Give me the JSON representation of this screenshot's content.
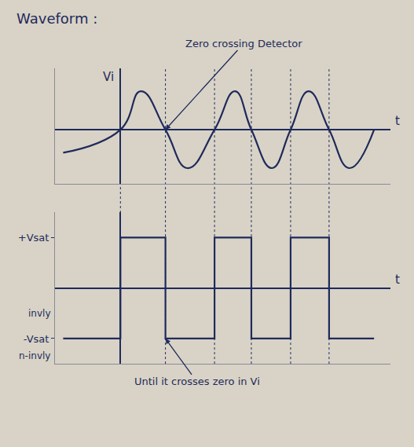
{
  "chart_data": [
    {
      "type": "line",
      "title": "Waveform :",
      "x": [
        -7,
        0,
        2.5,
        5.5,
        8.2,
        11.5,
        14,
        16,
        18.5,
        20.8,
        23,
        25.5,
        28,
        31
      ],
      "values": [
        -0.6,
        0,
        1,
        0,
        -1,
        0,
        1,
        0,
        -1,
        0,
        1,
        0,
        -1,
        0
      ],
      "xlim": [
        -8,
        33
      ],
      "ylim": [
        -1.4,
        1.6
      ],
      "tick_labels": false,
      "y_label": "Vi",
      "x_label": "t",
      "color": "#1f2a5c",
      "annotations": [
        {
          "text": "Zero crossing Detector",
          "x": 5.5,
          "y": 0
        }
      ]
    },
    {
      "type": "step",
      "x": [
        -7,
        0,
        5.5,
        11.5,
        16,
        20.8,
        25.5,
        31
      ],
      "values": [
        -1,
        1,
        -1,
        1,
        -1,
        1,
        -1,
        -1
      ],
      "xlim": [
        -8,
        33
      ],
      "ylim": [
        -1.5,
        1.5
      ],
      "yticks": [
        {
          "value": 1,
          "label": "+Vsat"
        },
        {
          "value": -1,
          "label": "-Vsat"
        }
      ],
      "tick_labels": "y",
      "x_label": "t",
      "color": "#1f2a5c",
      "annotations": [
        {
          "text": "Until it crosses zero in Vi",
          "x": 5.5,
          "y": -1
        },
        {
          "text": "invly",
          "y": -0.5
        },
        {
          "text": "n-invly",
          "y": -1.35
        }
      ]
    }
  ]
}
